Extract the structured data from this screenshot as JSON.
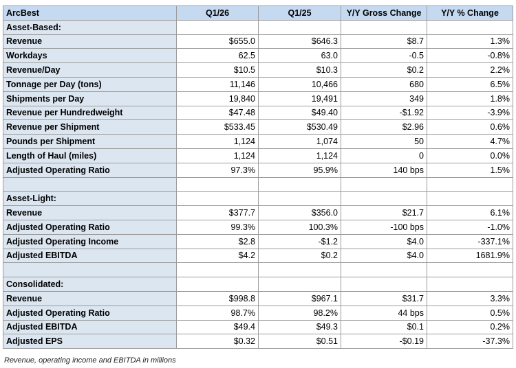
{
  "table": {
    "header": [
      "ArcBest",
      "Q1/26",
      "Q1/25",
      "Y/Y Gross Change",
      "Y/Y % Change"
    ],
    "sections": [
      {
        "title": "Asset-Based:",
        "rows": [
          [
            "Revenue",
            "$655.0",
            "$646.3",
            "$8.7",
            "1.3%"
          ],
          [
            "Workdays",
            "62.5",
            "63.0",
            "-0.5",
            "-0.8%"
          ],
          [
            "Revenue/Day",
            "$10.5",
            "$10.3",
            "$0.2",
            "2.2%"
          ],
          [
            "Tonnage per Day (tons)",
            "11,146",
            "10,466",
            "680",
            "6.5%"
          ],
          [
            "Shipments per Day",
            "19,840",
            "19,491",
            "349",
            "1.8%"
          ],
          [
            "Revenue per Hundredweight",
            "$47.48",
            "$49.40",
            "-$1.92",
            "-3.9%"
          ],
          [
            "Revenue per Shipment",
            "$533.45",
            "$530.49",
            "$2.96",
            "0.6%"
          ],
          [
            "Pounds per Shipment",
            "1,124",
            "1,074",
            "50",
            "4.7%"
          ],
          [
            "Length of Haul (miles)",
            "1,124",
            "1,124",
            "0",
            "0.0%"
          ],
          [
            "Adjusted Operating Ratio",
            "97.3%",
            "95.9%",
            "140 bps",
            "1.5%"
          ]
        ]
      },
      {
        "title": "Asset-Light:",
        "rows": [
          [
            "Revenue",
            "$377.7",
            "$356.0",
            "$21.7",
            "6.1%"
          ],
          [
            "Adjusted Operating Ratio",
            "99.3%",
            "100.3%",
            "-100 bps",
            "-1.0%"
          ],
          [
            "Adjusted Operating Income",
            "$2.8",
            "-$1.2",
            "$4.0",
            "-337.1%"
          ],
          [
            "Adjusted EBITDA",
            "$4.2",
            "$0.2",
            "$4.0",
            "1681.9%"
          ]
        ]
      },
      {
        "title": "Consolidated:",
        "rows": [
          [
            "Revenue",
            "$998.8",
            "$967.1",
            "$31.7",
            "3.3%"
          ],
          [
            "Adjusted Operating Ratio",
            "98.7%",
            "98.2%",
            "44 bps",
            "0.5%"
          ],
          [
            "Adjusted EBITDA",
            "$49.4",
            "$49.3",
            "$0.1",
            "0.2%"
          ],
          [
            "Adjusted EPS",
            "$0.32",
            "$0.51",
            "-$0.19",
            "-37.3%"
          ]
        ]
      }
    ]
  },
  "footnote": "Revenue, operating income and EBITDA in millions"
}
